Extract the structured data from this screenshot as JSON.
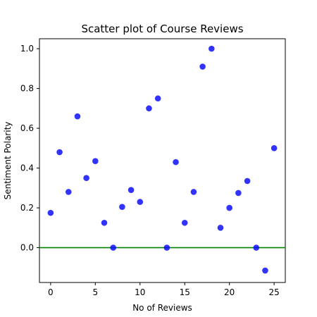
{
  "chart_data": {
    "type": "scatter",
    "title": "Scatter plot of Course Reviews",
    "xlabel": "No of Reviews",
    "ylabel": "Sentiment Polarity",
    "xlim": [
      -1.25,
      26.25
    ],
    "ylim": [
      -0.175,
      1.05
    ],
    "xticks": [
      0,
      5,
      10,
      15,
      20,
      25
    ],
    "yticks": [
      0.0,
      0.2,
      0.4,
      0.6,
      0.8,
      1.0
    ],
    "xtick_labels": [
      "0",
      "5",
      "10",
      "15",
      "20",
      "25"
    ],
    "ytick_labels": [
      "0.0",
      "0.2",
      "0.4",
      "0.6",
      "0.8",
      "1.0"
    ],
    "grid": false,
    "legend": "none",
    "marker_color": "#0000ff",
    "reference_line": {
      "y": 0.0,
      "color": "#008000"
    },
    "x": [
      0,
      1,
      2,
      3,
      4,
      5,
      6,
      7,
      8,
      9,
      10,
      11,
      12,
      13,
      14,
      15,
      16,
      17,
      18,
      19,
      20,
      21,
      22,
      23,
      24,
      25
    ],
    "y": [
      0.175,
      0.48,
      0.28,
      0.66,
      0.35,
      0.435,
      0.125,
      0.0,
      0.205,
      0.29,
      0.23,
      0.7,
      0.75,
      0.0,
      0.43,
      0.125,
      0.28,
      0.91,
      1.0,
      0.1,
      0.2,
      0.275,
      0.335,
      0.0,
      -0.115,
      0.5
    ]
  }
}
